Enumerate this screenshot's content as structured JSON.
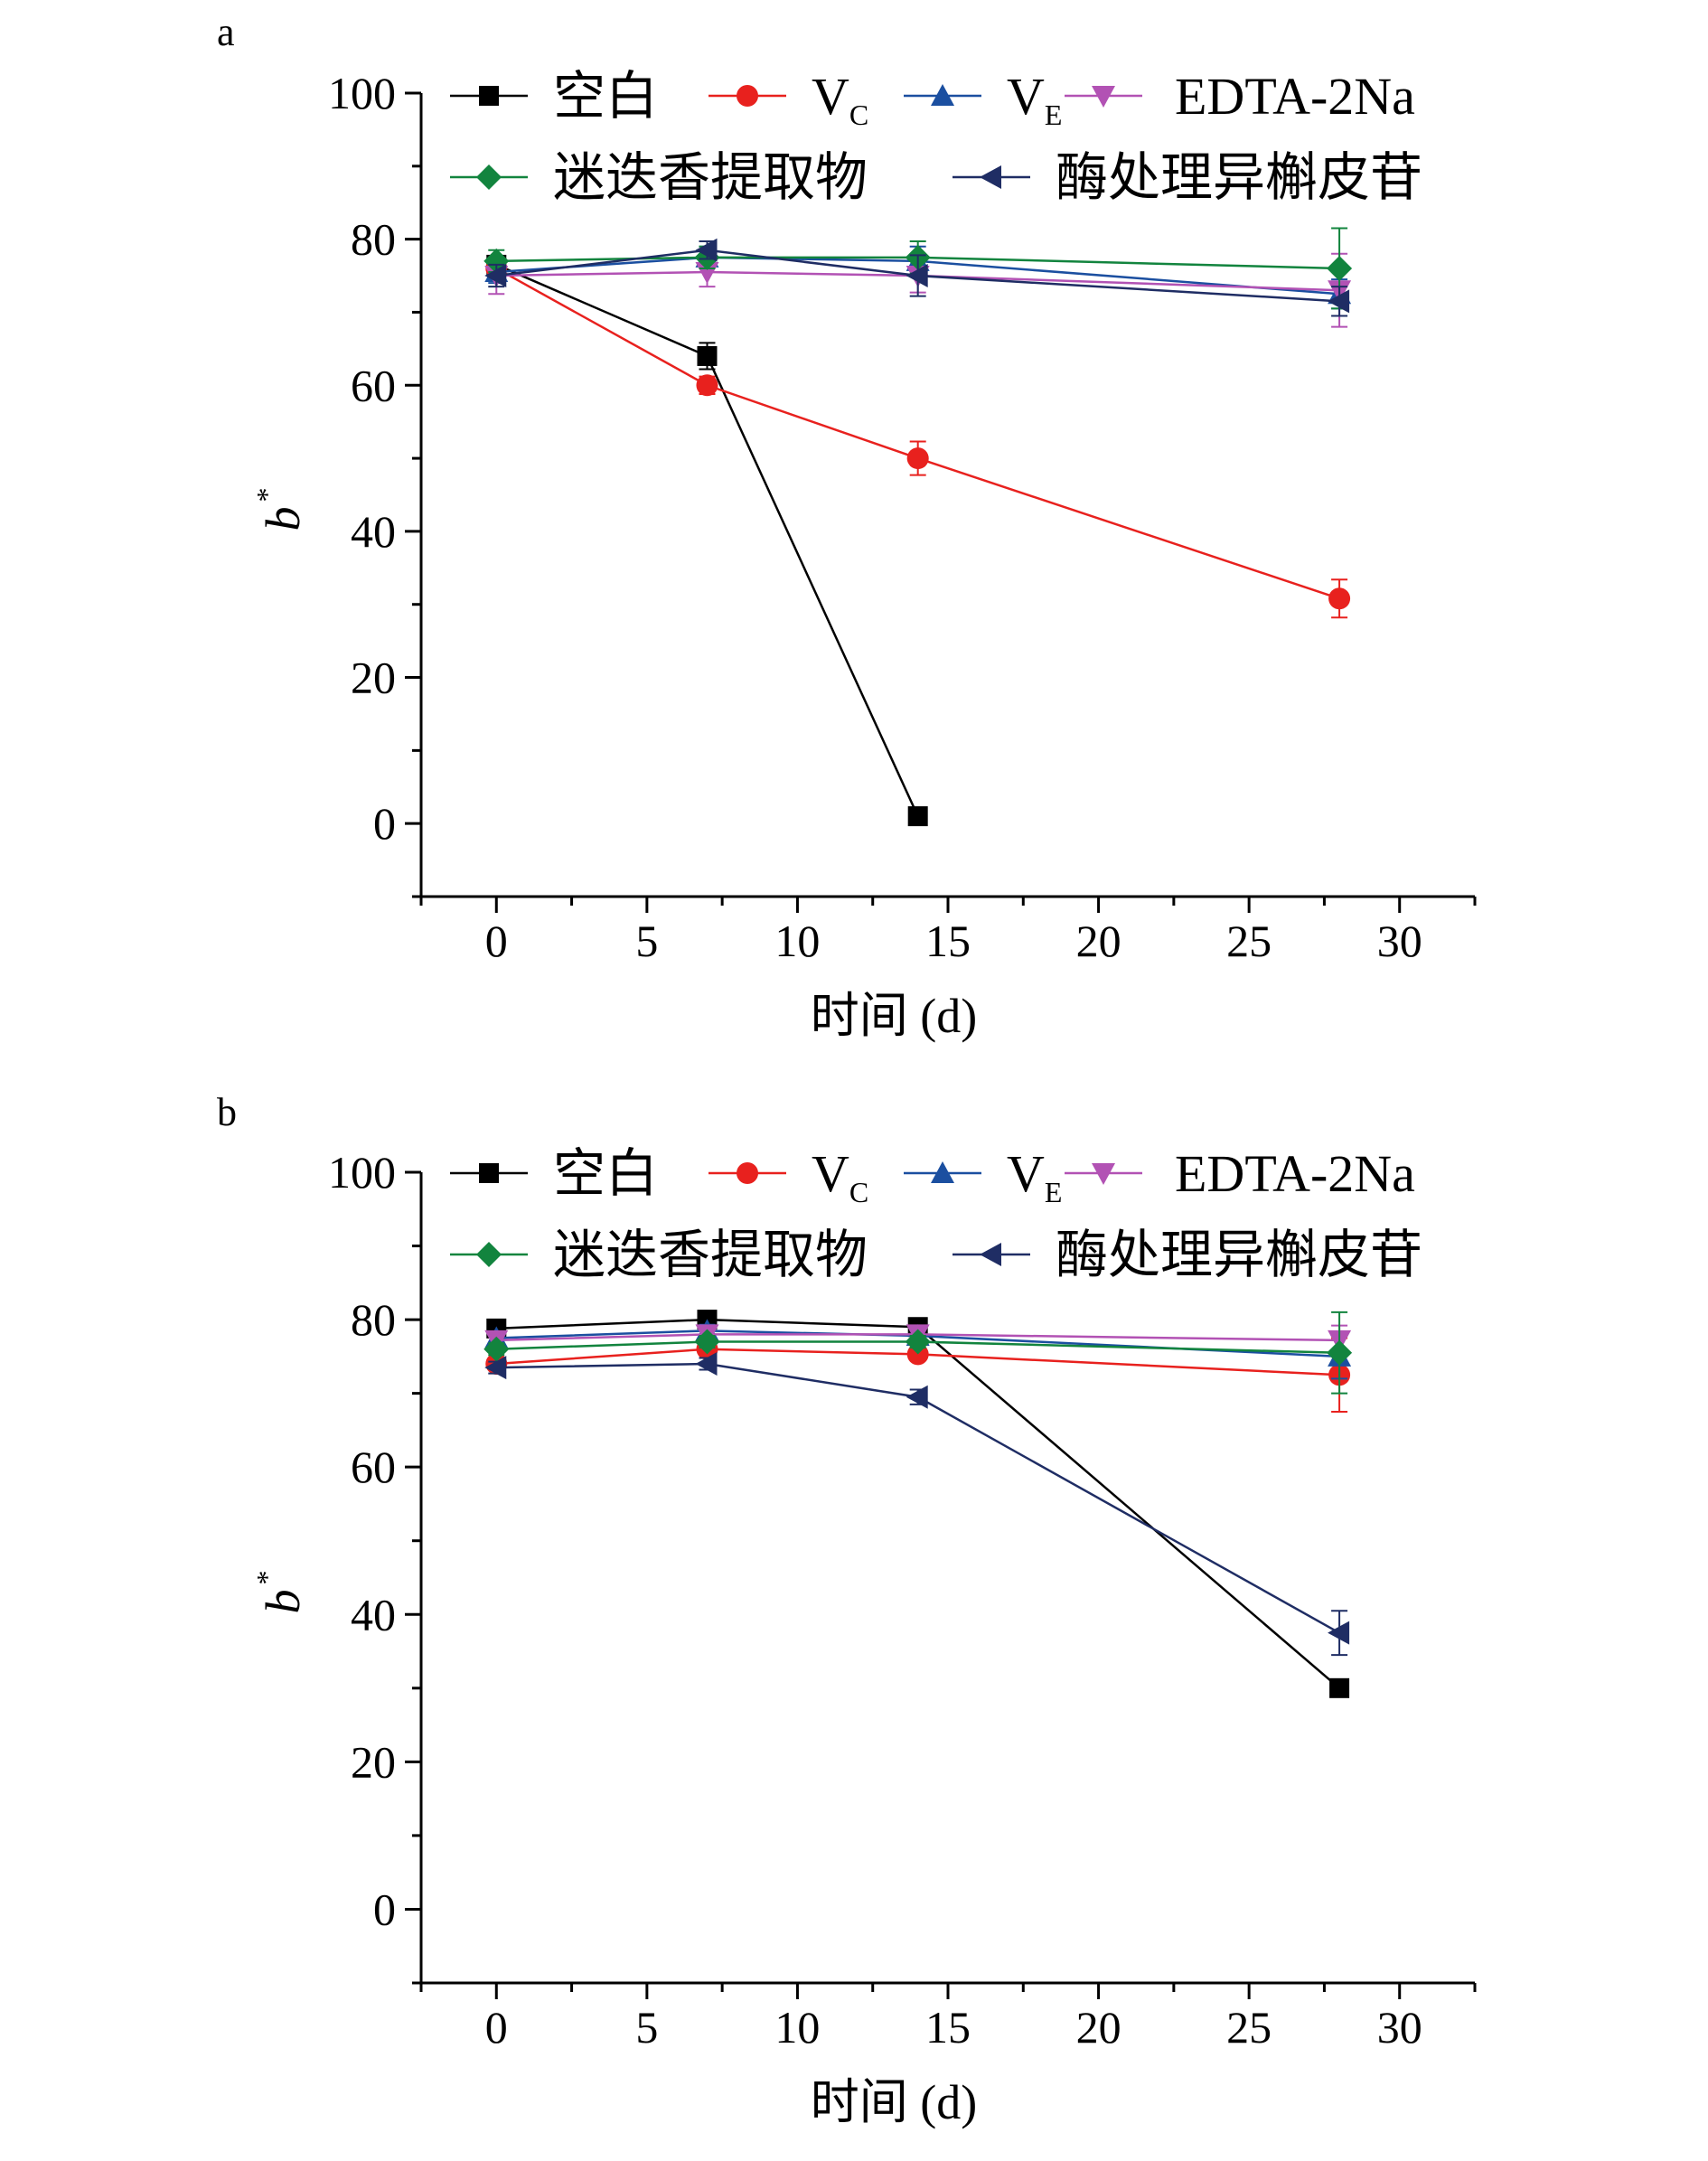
{
  "chart_data": [
    {
      "type": "line",
      "panel_label": "a",
      "xlabel": "时间 (d)",
      "ylabel": "b",
      "ylabel_superscript": "*",
      "xlim": [
        -2.5,
        32.5
      ],
      "ylim": [
        -10,
        100
      ],
      "xticks": [
        0,
        5,
        10,
        15,
        20,
        25,
        30
      ],
      "yticks": [
        0,
        20,
        40,
        60,
        80,
        100
      ],
      "grid": false,
      "legend_position": "top",
      "series": [
        {
          "name": "空白",
          "color": "#000000",
          "marker": "square",
          "x": [
            0,
            7,
            14
          ],
          "y": [
            76.5,
            64,
            1
          ],
          "err": [
            1.0,
            1.8,
            0.5
          ]
        },
        {
          "name": "VC",
          "color": "#e8211e",
          "marker": "circle",
          "x": [
            0,
            7,
            14,
            28
          ],
          "y": [
            76,
            60,
            50,
            30.8
          ],
          "err": [
            1.0,
            1.2,
            2.3,
            2.6
          ]
        },
        {
          "name": "VE",
          "color": "#1b4fa0",
          "marker": "triangle-up",
          "x": [
            0,
            7,
            14,
            28
          ],
          "y": [
            75.5,
            77.5,
            77,
            72.5
          ],
          "err": [
            1.5,
            1.5,
            2.0,
            2.0
          ]
        },
        {
          "name": "EDTA-2Na",
          "color": "#b252b4",
          "marker": "triangle-down",
          "x": [
            0,
            7,
            14,
            28
          ],
          "y": [
            75,
            75.5,
            75,
            73
          ],
          "err": [
            2.5,
            2.0,
            2.3,
            5.0
          ]
        },
        {
          "name": "迷迭香提取物",
          "color": "#12843e",
          "marker": "diamond",
          "x": [
            0,
            7,
            14,
            28
          ],
          "y": [
            77,
            77.5,
            77.5,
            76
          ],
          "err": [
            1.5,
            1.5,
            2.2,
            5.5
          ]
        },
        {
          "name": "酶处理异槲皮苷",
          "color": "#1f2d64",
          "marker": "triangle-left",
          "x": [
            0,
            7,
            14,
            28
          ],
          "y": [
            75,
            78.5,
            75,
            71.5
          ],
          "err": [
            1.5,
            1.2,
            2.8,
            2.0
          ]
        }
      ]
    },
    {
      "type": "line",
      "panel_label": "b",
      "xlabel": "时间 (d)",
      "ylabel": "b",
      "ylabel_superscript": "*",
      "xlim": [
        -2.5,
        32.5
      ],
      "ylim": [
        -10,
        100
      ],
      "xticks": [
        0,
        5,
        10,
        15,
        20,
        25,
        30
      ],
      "yticks": [
        0,
        20,
        40,
        60,
        80,
        100
      ],
      "grid": false,
      "legend_position": "top",
      "series": [
        {
          "name": "空白",
          "color": "#000000",
          "marker": "square",
          "x": [
            0,
            7,
            14,
            28
          ],
          "y": [
            78.8,
            80,
            79,
            30
          ],
          "err": [
            0.6,
            0.6,
            0.6,
            0.6
          ]
        },
        {
          "name": "VC",
          "color": "#e8211e",
          "marker": "circle",
          "x": [
            0,
            7,
            14,
            28
          ],
          "y": [
            74,
            76,
            75.3,
            72.5
          ],
          "err": [
            0.8,
            0.8,
            0.8,
            5.0
          ]
        },
        {
          "name": "VE",
          "color": "#1b4fa0",
          "marker": "triangle-up",
          "x": [
            0,
            7,
            14,
            28
          ],
          "y": [
            77.5,
            78.5,
            77.8,
            75
          ],
          "err": [
            0.8,
            0.8,
            0.8,
            3.0
          ]
        },
        {
          "name": "EDTA-2Na",
          "color": "#b252b4",
          "marker": "triangle-down",
          "x": [
            0,
            7,
            14,
            28
          ],
          "y": [
            77.2,
            78,
            78,
            77.2
          ],
          "err": [
            0.8,
            0.8,
            0.8,
            2.0
          ]
        },
        {
          "name": "迷迭香提取物",
          "color": "#12843e",
          "marker": "diamond",
          "x": [
            0,
            7,
            14,
            28
          ],
          "y": [
            76,
            77,
            77,
            75.5
          ],
          "err": [
            0.8,
            0.8,
            0.8,
            5.5
          ]
        },
        {
          "name": "酶处理异槲皮苷",
          "color": "#1f2d64",
          "marker": "triangle-left",
          "x": [
            0,
            7,
            14,
            28
          ],
          "y": [
            73.5,
            74,
            69.5,
            37.5
          ],
          "err": [
            0.8,
            0.8,
            1.0,
            3.0
          ]
        }
      ]
    }
  ]
}
